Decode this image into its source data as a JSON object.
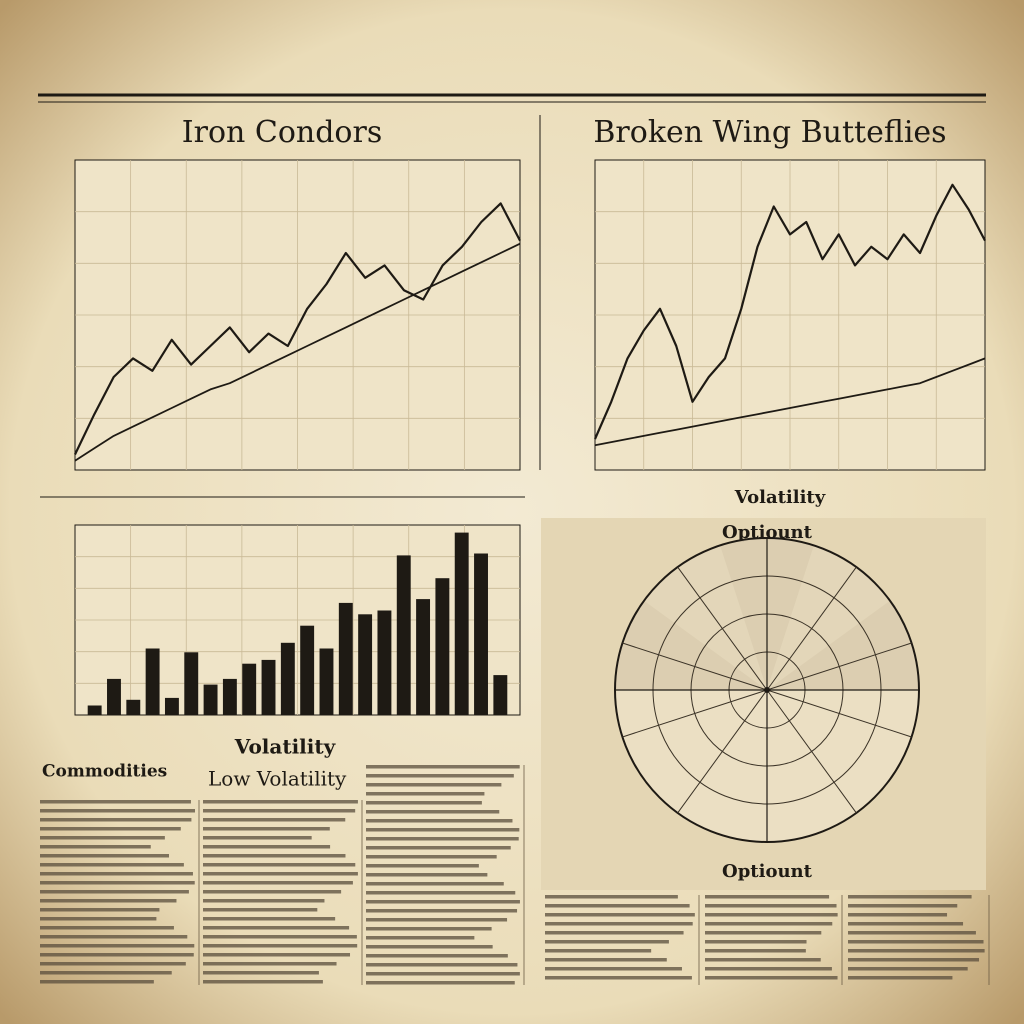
{
  "headline_rule": true,
  "chart_data": [
    {
      "type": "line",
      "title": "Iron Condors",
      "grid": true,
      "x": [
        0,
        1,
        2,
        3,
        4,
        5,
        6,
        7,
        8,
        9,
        10,
        11,
        12,
        13,
        14,
        15,
        16,
        17,
        18,
        19,
        20,
        21,
        22,
        23
      ],
      "xlim": [
        0,
        23
      ],
      "ylim": [
        0,
        100
      ],
      "series": [
        {
          "color": "#1e1a14",
          "values": [
            5,
            18,
            30,
            36,
            32,
            42,
            34,
            40,
            46,
            38,
            44,
            40,
            52,
            60,
            70,
            62,
            66,
            58,
            55,
            66,
            72,
            80,
            86,
            74
          ]
        },
        {
          "color": "#1e1a14",
          "values": [
            3,
            7,
            11,
            14,
            17,
            20,
            23,
            26,
            28,
            31,
            34,
            37,
            40,
            43,
            46,
            49,
            52,
            55,
            58,
            61,
            64,
            67,
            70,
            73
          ]
        }
      ]
    },
    {
      "type": "line",
      "title": "Broken Wing Butteflies",
      "grid": true,
      "x": [
        0,
        1,
        2,
        3,
        4,
        5,
        6,
        7,
        8,
        9,
        10,
        11,
        12,
        13,
        14,
        15,
        16,
        17,
        18,
        19,
        20,
        21,
        22,
        23,
        24
      ],
      "xlim": [
        0,
        24
      ],
      "ylim": [
        0,
        100
      ],
      "series": [
        {
          "color": "#1e1a14",
          "values": [
            10,
            22,
            36,
            45,
            52,
            40,
            22,
            30,
            36,
            52,
            72,
            85,
            76,
            80,
            68,
            76,
            66,
            72,
            68,
            76,
            70,
            82,
            92,
            84,
            74
          ]
        },
        {
          "color": "#1e1a14",
          "values": [
            8,
            9,
            10,
            11,
            12,
            13,
            14,
            15,
            16,
            17,
            18,
            19,
            20,
            21,
            22,
            23,
            24,
            25,
            26,
            27,
            28,
            30,
            32,
            34,
            36
          ]
        }
      ]
    },
    {
      "type": "bar",
      "x_label": "Volatility",
      "grid": true,
      "color": "#1e1a14",
      "ylim": [
        0,
        100
      ],
      "values": [
        5,
        19,
        8,
        35,
        9,
        33,
        16,
        19,
        27,
        29,
        38,
        47,
        35,
        59,
        53,
        55,
        84,
        61,
        72,
        96,
        85,
        21
      ]
    },
    {
      "type": "polar",
      "title": "Optiount",
      "caption": "Optiount",
      "label": "Volatility"
    }
  ],
  "columns": {
    "left_heading": "Commodities",
    "middle_heading": "Low Volatility"
  }
}
